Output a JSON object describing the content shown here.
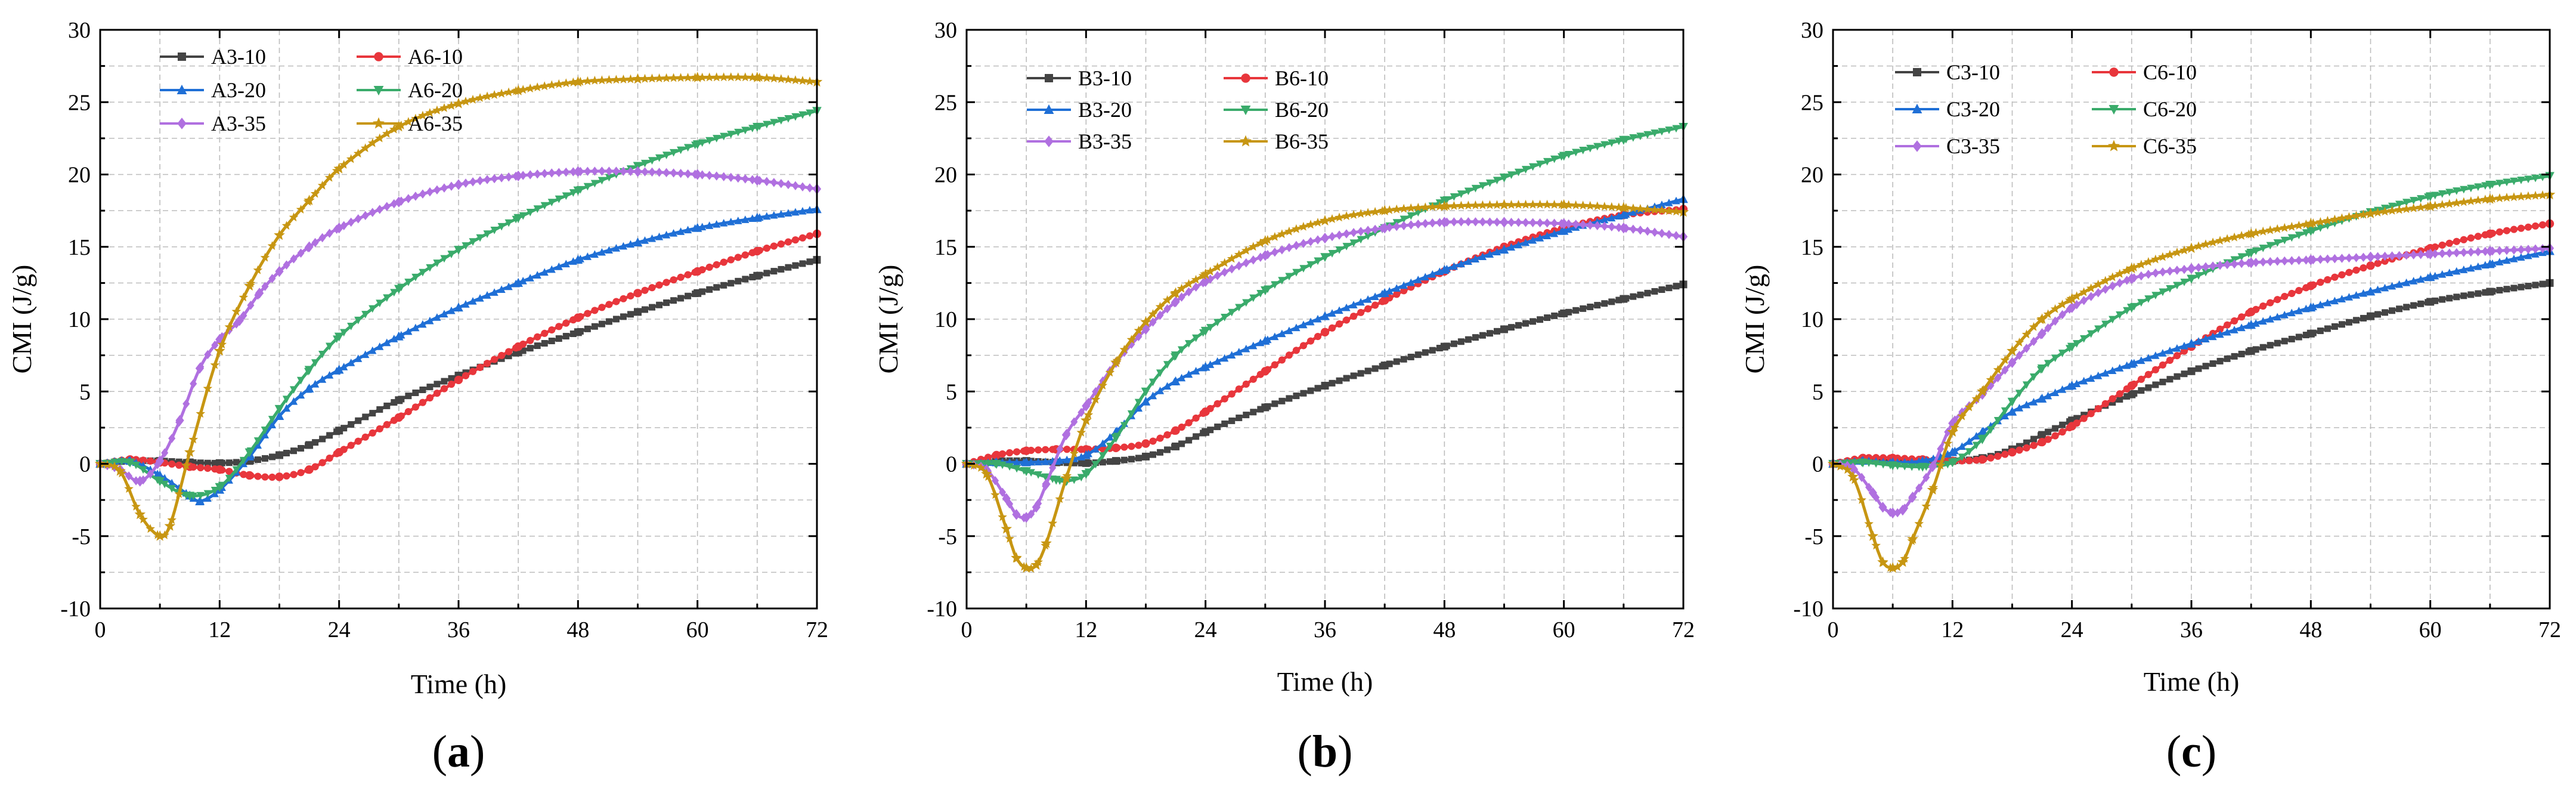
{
  "chart_data": [
    {
      "type": "line",
      "panel": "(a)",
      "panel_letter": "a",
      "xlabel": "Time (h)",
      "ylabel": "CMI (J/g)",
      "xlim": [
        0,
        72
      ],
      "ylim": [
        -10,
        30
      ],
      "xticks": [
        0,
        12,
        24,
        36,
        48,
        60,
        72
      ],
      "yticks": [
        -10,
        -5,
        0,
        5,
        10,
        15,
        20,
        25,
        30
      ],
      "grid": true,
      "legend_position": "top-left",
      "series": [
        {
          "name": "A3-10",
          "color": "#444444",
          "marker": "square",
          "x": [
            0,
            3,
            6,
            9,
            12,
            15,
            18,
            21,
            24,
            30,
            36,
            42,
            48,
            54,
            60,
            66,
            72
          ],
          "values": [
            0,
            0.2,
            0.2,
            0.1,
            0.05,
            0.2,
            0.6,
            1.3,
            2.3,
            4.4,
            6.1,
            7.7,
            9.1,
            10.5,
            11.8,
            13,
            14.1
          ]
        },
        {
          "name": "A6-10",
          "color": "#e8363c",
          "marker": "circle",
          "x": [
            0,
            3,
            6,
            9,
            12,
            15,
            18,
            21,
            24,
            30,
            36,
            42,
            48,
            54,
            60,
            66,
            72
          ],
          "values": [
            0,
            0.3,
            0.1,
            -0.2,
            -0.4,
            -0.8,
            -0.9,
            -0.4,
            0.8,
            3.2,
            5.8,
            8.1,
            10.1,
            11.8,
            13.3,
            14.7,
            15.9
          ]
        },
        {
          "name": "A3-20",
          "color": "#1f6fd6",
          "marker": "triangle-up",
          "x": [
            0,
            3,
            6,
            9,
            10,
            12,
            15,
            18,
            21,
            24,
            30,
            36,
            42,
            48,
            54,
            60,
            66,
            72
          ],
          "values": [
            0,
            0.2,
            -0.8,
            -2.2,
            -2.6,
            -1.8,
            0.5,
            3.3,
            5.2,
            6.5,
            8.8,
            10.8,
            12.5,
            14.1,
            15.3,
            16.3,
            17,
            17.6
          ]
        },
        {
          "name": "A6-20",
          "color": "#3aab6b",
          "marker": "triangle-down",
          "x": [
            0,
            3,
            6,
            9,
            12,
            15,
            18,
            21,
            24,
            30,
            36,
            42,
            48,
            54,
            60,
            66,
            72
          ],
          "values": [
            0,
            0.1,
            -1.2,
            -2.2,
            -1.6,
            0.8,
            3.8,
            6.5,
            8.8,
            12.1,
            14.8,
            17,
            18.9,
            20.6,
            22.1,
            23.3,
            24.4
          ]
        },
        {
          "name": "A3-35",
          "color": "#b070e0",
          "marker": "diamond",
          "x": [
            0,
            2,
            4,
            6,
            8,
            10,
            12,
            14,
            16,
            18,
            21,
            24,
            30,
            36,
            42,
            48,
            54,
            60,
            66,
            72
          ],
          "values": [
            0,
            -0.4,
            -1.2,
            0.2,
            3,
            6.6,
            8.6,
            9.9,
            11.8,
            13.3,
            15,
            16.3,
            18.1,
            19.3,
            19.9,
            20.2,
            20.2,
            20,
            19.6,
            19
          ]
        },
        {
          "name": "A6-35",
          "color": "#c79612",
          "marker": "star",
          "x": [
            0,
            2,
            4,
            6,
            7,
            9,
            12,
            15,
            18,
            21,
            24,
            30,
            36,
            42,
            48,
            54,
            60,
            66,
            72
          ],
          "values": [
            0,
            -0.5,
            -3.5,
            -5,
            -4.3,
            0.8,
            7.8,
            12.3,
            15.8,
            18.2,
            20.4,
            23.3,
            24.9,
            25.8,
            26.4,
            26.6,
            26.7,
            26.7,
            26.4
          ]
        }
      ]
    },
    {
      "type": "line",
      "panel": "(b)",
      "panel_letter": "b",
      "xlabel": "Time (h)",
      "ylabel": "CMI (J/g)",
      "xlim": [
        0,
        72
      ],
      "ylim": [
        -10,
        30
      ],
      "xticks": [
        0,
        12,
        24,
        36,
        48,
        60,
        72
      ],
      "yticks": [
        -10,
        -5,
        0,
        5,
        10,
        15,
        20,
        25,
        30
      ],
      "grid": true,
      "legend_position": "top-left",
      "series": [
        {
          "name": "B3-10",
          "color": "#444444",
          "marker": "square",
          "x": [
            0,
            3,
            6,
            9,
            12,
            15,
            18,
            21,
            24,
            30,
            36,
            42,
            48,
            54,
            60,
            66,
            72
          ],
          "values": [
            0,
            0.2,
            0.2,
            0.1,
            0.05,
            0.2,
            0.5,
            1.2,
            2.2,
            3.9,
            5.4,
            6.8,
            8.1,
            9.3,
            10.4,
            11.4,
            12.4
          ]
        },
        {
          "name": "B6-10",
          "color": "#e8363c",
          "marker": "circle",
          "x": [
            0,
            3,
            6,
            9,
            12,
            15,
            18,
            21,
            24,
            30,
            36,
            42,
            48,
            54,
            60,
            66,
            72
          ],
          "values": [
            0,
            0.6,
            0.9,
            1,
            1,
            1.1,
            1.4,
            2.3,
            3.6,
            6.4,
            9.1,
            11.3,
            13.3,
            15,
            16.3,
            17.2,
            17.6
          ]
        },
        {
          "name": "B3-20",
          "color": "#1f6fd6",
          "marker": "triangle-up",
          "x": [
            0,
            3,
            6,
            9,
            12,
            15,
            18,
            21,
            24,
            30,
            36,
            42,
            48,
            54,
            60,
            66,
            72
          ],
          "values": [
            0,
            0.1,
            0.1,
            0.2,
            0.6,
            2.2,
            4.3,
            5.7,
            6.7,
            8.5,
            10.2,
            11.8,
            13.4,
            14.8,
            16.1,
            17.2,
            18.3
          ]
        },
        {
          "name": "B6-20",
          "color": "#3aab6b",
          "marker": "triangle-down",
          "x": [
            0,
            3,
            6,
            9,
            10,
            12,
            15,
            18,
            21,
            24,
            30,
            36,
            42,
            48,
            54,
            60,
            66,
            72
          ],
          "values": [
            0,
            0,
            -0.5,
            -1.1,
            -1.2,
            -0.7,
            1.8,
            5,
            7.5,
            9.2,
            12,
            14.3,
            16.3,
            18.2,
            19.8,
            21.3,
            22.4,
            23.3
          ]
        },
        {
          "name": "B3-35",
          "color": "#b070e0",
          "marker": "diamond",
          "x": [
            0,
            2,
            4,
            5,
            6,
            7,
            8,
            10,
            12,
            15,
            18,
            21,
            24,
            30,
            36,
            42,
            48,
            54,
            60,
            66,
            72
          ],
          "values": [
            0,
            -0.4,
            -2.4,
            -3.5,
            -3.7,
            -3,
            -1.4,
            2,
            4,
            7,
            9.3,
            11.2,
            12.6,
            14.4,
            15.6,
            16.3,
            16.7,
            16.7,
            16.6,
            16.3,
            15.7
          ]
        },
        {
          "name": "B6-35",
          "color": "#c79612",
          "marker": "star",
          "x": [
            0,
            2,
            4,
            5,
            6,
            7,
            8,
            10,
            12,
            15,
            18,
            21,
            24,
            30,
            36,
            42,
            48,
            54,
            60,
            66,
            72
          ],
          "values": [
            0,
            -0.7,
            -4.5,
            -6.5,
            -7.2,
            -7,
            -5.5,
            -1,
            3,
            7,
            9.8,
            11.8,
            13.1,
            15.4,
            16.8,
            17.5,
            17.8,
            17.9,
            17.9,
            17.7,
            17.4
          ]
        }
      ]
    },
    {
      "type": "line",
      "panel": "(c)",
      "panel_letter": "c",
      "xlabel": "Time (h)",
      "ylabel": "CMI (J/g)",
      "xlim": [
        0,
        72
      ],
      "ylim": [
        -10,
        30
      ],
      "xticks": [
        0,
        12,
        24,
        36,
        48,
        60,
        72
      ],
      "yticks": [
        -10,
        -5,
        0,
        5,
        10,
        15,
        20,
        25,
        30
      ],
      "grid": true,
      "legend_position": "top-left",
      "series": [
        {
          "name": "C3-10",
          "color": "#444444",
          "marker": "square",
          "x": [
            0,
            3,
            6,
            9,
            12,
            15,
            18,
            21,
            24,
            30,
            36,
            42,
            48,
            54,
            60,
            66,
            72
          ],
          "values": [
            0,
            0.3,
            0.3,
            0.2,
            0.2,
            0.4,
            1,
            2,
            3,
            4.8,
            6.4,
            7.8,
            9,
            10.2,
            11.2,
            11.9,
            12.5
          ]
        },
        {
          "name": "C6-10",
          "color": "#e8363c",
          "marker": "circle",
          "x": [
            0,
            3,
            6,
            9,
            12,
            15,
            18,
            21,
            24,
            30,
            36,
            42,
            48,
            54,
            60,
            66,
            72
          ],
          "values": [
            0,
            0.4,
            0.4,
            0.3,
            0.2,
            0.3,
            0.8,
            1.5,
            2.6,
            5.4,
            8.1,
            10.5,
            12.3,
            13.7,
            14.9,
            15.9,
            16.6
          ]
        },
        {
          "name": "C3-20",
          "color": "#1f6fd6",
          "marker": "triangle-up",
          "x": [
            0,
            3,
            6,
            9,
            12,
            15,
            18,
            21,
            24,
            30,
            36,
            42,
            48,
            54,
            60,
            66,
            72
          ],
          "values": [
            0,
            0.2,
            0.1,
            0.2,
            0.8,
            2.2,
            3.6,
            4.5,
            5.4,
            6.9,
            8.3,
            9.6,
            10.8,
            11.9,
            12.9,
            13.8,
            14.7
          ]
        },
        {
          "name": "C6-20",
          "color": "#3aab6b",
          "marker": "triangle-down",
          "x": [
            0,
            3,
            6,
            9,
            12,
            15,
            18,
            21,
            24,
            30,
            36,
            42,
            48,
            54,
            60,
            66,
            72
          ],
          "values": [
            0,
            0.1,
            -0.1,
            -0.2,
            0.1,
            1.7,
            4.3,
            6.6,
            8.1,
            10.8,
            12.8,
            14.6,
            16.1,
            17.4,
            18.5,
            19.3,
            19.9
          ]
        },
        {
          "name": "C3-35",
          "color": "#b070e0",
          "marker": "diamond",
          "x": [
            0,
            2,
            4,
            5,
            6,
            7,
            8,
            10,
            12,
            15,
            18,
            21,
            24,
            30,
            36,
            42,
            48,
            54,
            60,
            66,
            72
          ],
          "values": [
            0,
            -0.3,
            -2,
            -3,
            -3.4,
            -3.2,
            -2.3,
            -0.2,
            2.8,
            4.8,
            7,
            9,
            10.8,
            12.8,
            13.5,
            13.9,
            14.1,
            14.3,
            14.5,
            14.7,
            14.9
          ]
        },
        {
          "name": "C6-35",
          "color": "#c79612",
          "marker": "star",
          "x": [
            0,
            2,
            4,
            5,
            6,
            7,
            8,
            10,
            12,
            15,
            18,
            21,
            24,
            30,
            36,
            42,
            48,
            54,
            60,
            66,
            72
          ],
          "values": [
            0,
            -0.9,
            -5,
            -6.8,
            -7.2,
            -6.8,
            -5.2,
            -1.8,
            2.2,
            5,
            7.8,
            10,
            11.4,
            13.5,
            14.9,
            15.9,
            16.6,
            17.3,
            17.8,
            18.3,
            18.6
          ]
        }
      ]
    }
  ]
}
